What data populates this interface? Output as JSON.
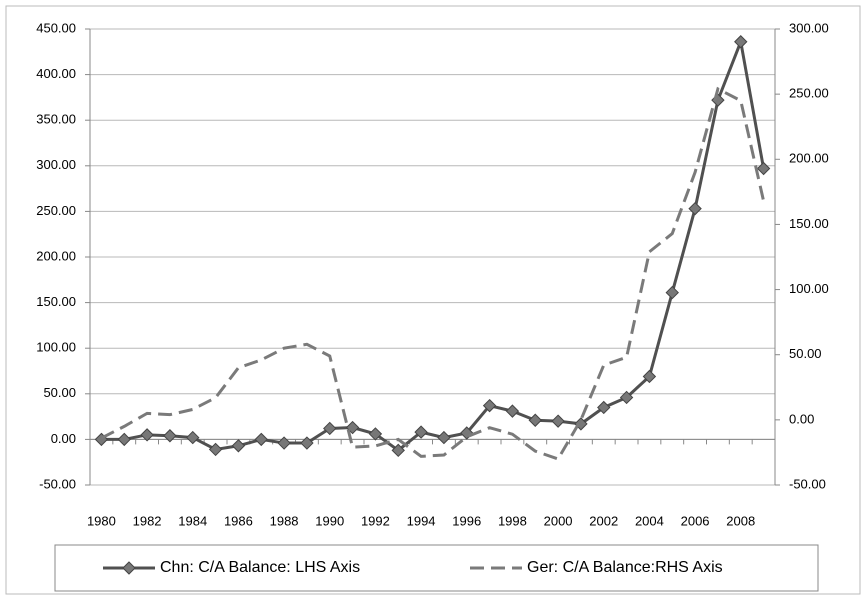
{
  "chart_data": {
    "type": "line",
    "categories": [
      "1980",
      null,
      "1982",
      null,
      "1984",
      null,
      "1986",
      null,
      "1988",
      null,
      "1990",
      null,
      "1992",
      null,
      "1994",
      null,
      "1996",
      null,
      "1998",
      null,
      "2000",
      null,
      "2002",
      null,
      "2004",
      null,
      "2006",
      null,
      "2008",
      null
    ],
    "series": [
      {
        "name": "Chn: C/A Balance: LHS Axis",
        "color": "#505050",
        "axis": "y",
        "values": [
          0,
          0,
          5,
          4,
          2,
          -11,
          -7,
          0,
          -4,
          -4,
          12,
          13,
          6,
          -12,
          8,
          2,
          7,
          37,
          31,
          21,
          20,
          17,
          35,
          46,
          69,
          161,
          253,
          372,
          436,
          297
        ]
      },
      {
        "name": "Ger: C/A Balance:RHS Axis",
        "color": "#7a7a7a",
        "axis": "y2",
        "values": [
          -14,
          -5,
          5,
          4,
          8,
          17,
          40,
          46,
          55,
          58,
          49,
          -21,
          -20,
          -15,
          -28,
          -27,
          -13,
          -6,
          -11,
          -24,
          -30,
          0,
          42,
          48,
          129,
          143,
          190,
          254,
          245,
          168
        ]
      }
    ],
    "ylim": [
      -50,
      450
    ],
    "yticks": [
      {
        "value": -50,
        "label": "-50.00"
      },
      {
        "value": 0,
        "label": "0.00"
      },
      {
        "value": 50,
        "label": "50.00"
      },
      {
        "value": 100,
        "label": "100.00"
      },
      {
        "value": 150,
        "label": "150.00"
      },
      {
        "value": 200,
        "label": "200.00"
      },
      {
        "value": 250,
        "label": "250.00"
      },
      {
        "value": 300,
        "label": "300.00"
      },
      {
        "value": 350,
        "label": "350.00"
      },
      {
        "value": 400,
        "label": "400.00"
      },
      {
        "value": 450,
        "label": "450.00"
      }
    ],
    "y2lim": [
      -50,
      300
    ],
    "y2ticks": [
      {
        "value": -50,
        "label": "-50.00"
      },
      {
        "value": 0,
        "label": "0.00"
      },
      {
        "value": 50,
        "label": "50.00"
      },
      {
        "value": 100,
        "label": "100.00"
      },
      {
        "value": 150,
        "label": "150.00"
      },
      {
        "value": 200,
        "label": "200.00"
      },
      {
        "value": 250,
        "label": "250.00"
      },
      {
        "value": 300,
        "label": "300.00"
      }
    ],
    "grid": true
  }
}
